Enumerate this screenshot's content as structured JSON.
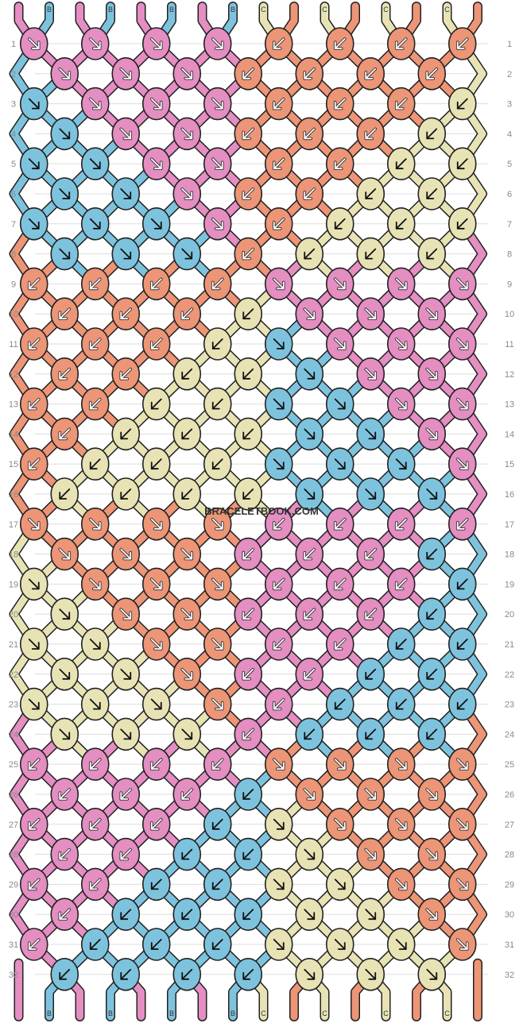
{
  "watermark": "BRACELETBOOK.COM",
  "colors": {
    "A": "#e48ec2",
    "B": "#7ec3de",
    "C": "#e8e3b5",
    "D": "#ed9577",
    "outline": "#222222",
    "grid": "#dddddd",
    "background": "#ffffff"
  },
  "strands_top": [
    "A",
    "B",
    "A",
    "B",
    "A",
    "B",
    "A",
    "B",
    "C",
    "D",
    "C",
    "D",
    "C",
    "D",
    "C",
    "D"
  ],
  "strands_bottom": [
    "A",
    "B",
    "A",
    "B",
    "A",
    "B",
    "A",
    "B",
    "C",
    "D",
    "C",
    "D",
    "C",
    "D",
    "C",
    "D"
  ],
  "strand_label_text": {
    "A": "",
    "B": "B",
    "C": "C",
    "D": ""
  },
  "row_labels": [
    "1",
    "2",
    "3",
    "4",
    "5",
    "6",
    "7",
    "8",
    "9",
    "10",
    "11",
    "12",
    "13",
    "14",
    "15",
    "16",
    "17",
    "18",
    "19",
    "20",
    "21",
    "22",
    "23",
    "24",
    "25",
    "26",
    "27",
    "28",
    "29",
    "30",
    "31",
    "32"
  ],
  "knot_rows": [
    [
      "A",
      "A",
      "A",
      "A",
      "D",
      "D",
      "D",
      "D"
    ],
    [
      "A",
      "A",
      "A",
      "D",
      "D",
      "D",
      "D"
    ],
    [
      "B",
      "A",
      "A",
      "A",
      "D",
      "D",
      "D",
      "C"
    ],
    [
      "B",
      "A",
      "A",
      "D",
      "D",
      "D",
      "C"
    ],
    [
      "B",
      "B",
      "A",
      "A",
      "D",
      "D",
      "C",
      "C"
    ],
    [
      "B",
      "B",
      "A",
      "D",
      "D",
      "C",
      "C"
    ],
    [
      "B",
      "B",
      "B",
      "A",
      "D",
      "C",
      "C",
      "C"
    ],
    [
      "B",
      "B",
      "B",
      "D",
      "C",
      "C",
      "C"
    ],
    [
      "D",
      "D",
      "D",
      "D",
      "A",
      "A",
      "A",
      "A"
    ],
    [
      "D",
      "D",
      "D",
      "C",
      "A",
      "A",
      "A"
    ],
    [
      "D",
      "D",
      "D",
      "C",
      "B",
      "A",
      "A",
      "A"
    ],
    [
      "D",
      "D",
      "C",
      "C",
      "B",
      "A",
      "A"
    ],
    [
      "D",
      "D",
      "C",
      "C",
      "B",
      "B",
      "A",
      "A"
    ],
    [
      "D",
      "C",
      "C",
      "C",
      "B",
      "B",
      "A"
    ],
    [
      "D",
      "C",
      "C",
      "C",
      "B",
      "B",
      "B",
      "A"
    ],
    [
      "C",
      "C",
      "C",
      "C",
      "B",
      "B",
      "B"
    ],
    [
      "D",
      "D",
      "D",
      "D",
      "A",
      "A",
      "A",
      "A"
    ],
    [
      "D",
      "D",
      "D",
      "A",
      "A",
      "A",
      "B"
    ],
    [
      "C",
      "D",
      "D",
      "D",
      "A",
      "A",
      "A",
      "B"
    ],
    [
      "C",
      "D",
      "D",
      "A",
      "A",
      "A",
      "B"
    ],
    [
      "C",
      "C",
      "D",
      "D",
      "A",
      "A",
      "B",
      "B"
    ],
    [
      "C",
      "C",
      "D",
      "A",
      "A",
      "B",
      "B"
    ],
    [
      "C",
      "C",
      "C",
      "D",
      "A",
      "B",
      "B",
      "B"
    ],
    [
      "C",
      "C",
      "C",
      "A",
      "B",
      "B",
      "B"
    ],
    [
      "A",
      "A",
      "A",
      "A",
      "D",
      "D",
      "D",
      "D"
    ],
    [
      "A",
      "A",
      "A",
      "B",
      "D",
      "D",
      "D"
    ],
    [
      "A",
      "A",
      "A",
      "B",
      "C",
      "D",
      "D",
      "D"
    ],
    [
      "A",
      "A",
      "B",
      "B",
      "C",
      "D",
      "D"
    ],
    [
      "A",
      "A",
      "B",
      "B",
      "C",
      "C",
      "D",
      "D"
    ],
    [
      "A",
      "B",
      "B",
      "B",
      "C",
      "C",
      "D"
    ],
    [
      "A",
      "B",
      "B",
      "B",
      "C",
      "C",
      "C",
      "D"
    ],
    [
      "B",
      "B",
      "B",
      "B",
      "C",
      "C",
      "C"
    ]
  ],
  "arrow_rows": [
    [
      "se",
      "se",
      "se",
      "se",
      "sw",
      "sw",
      "sw",
      "sw"
    ],
    [
      "se",
      "se",
      "se",
      "sw",
      "sw",
      "sw",
      "sw"
    ],
    [
      "se",
      "se",
      "se",
      "se",
      "sw",
      "sw",
      "sw",
      "sw"
    ],
    [
      "se",
      "se",
      "se",
      "sw",
      "sw",
      "sw",
      "sw"
    ],
    [
      "se",
      "se",
      "se",
      "se",
      "sw",
      "sw",
      "sw",
      "sw"
    ],
    [
      "se",
      "se",
      "se",
      "sw",
      "sw",
      "sw",
      "sw"
    ],
    [
      "se",
      "se",
      "se",
      "se",
      "sw",
      "sw",
      "sw",
      "sw"
    ],
    [
      "se",
      "se",
      "se",
      "sw",
      "sw",
      "sw",
      "sw"
    ],
    [
      "sw",
      "sw",
      "sw",
      "sw",
      "se",
      "se",
      "se",
      "se"
    ],
    [
      "sw",
      "sw",
      "sw",
      "sw",
      "se",
      "se",
      "se"
    ],
    [
      "sw",
      "sw",
      "sw",
      "sw",
      "se",
      "se",
      "se",
      "se"
    ],
    [
      "sw",
      "sw",
      "sw",
      "sw",
      "se",
      "se",
      "se"
    ],
    [
      "sw",
      "sw",
      "sw",
      "sw",
      "se",
      "se",
      "se",
      "se"
    ],
    [
      "sw",
      "sw",
      "sw",
      "sw",
      "se",
      "se",
      "se"
    ],
    [
      "sw",
      "sw",
      "sw",
      "sw",
      "se",
      "se",
      "se",
      "se"
    ],
    [
      "sw",
      "sw",
      "sw",
      "sw",
      "se",
      "se",
      "se"
    ],
    [
      "se",
      "se",
      "se",
      "se",
      "sw",
      "sw",
      "sw",
      "sw"
    ],
    [
      "se",
      "se",
      "se",
      "sw",
      "sw",
      "sw",
      "sw"
    ],
    [
      "se",
      "se",
      "se",
      "se",
      "sw",
      "sw",
      "sw",
      "sw"
    ],
    [
      "se",
      "se",
      "se",
      "sw",
      "sw",
      "sw",
      "sw"
    ],
    [
      "se",
      "se",
      "se",
      "se",
      "sw",
      "sw",
      "sw",
      "sw"
    ],
    [
      "se",
      "se",
      "se",
      "sw",
      "sw",
      "sw",
      "sw"
    ],
    [
      "se",
      "se",
      "se",
      "se",
      "sw",
      "sw",
      "sw",
      "sw"
    ],
    [
      "se",
      "se",
      "se",
      "sw",
      "sw",
      "sw",
      "sw"
    ],
    [
      "sw",
      "sw",
      "sw",
      "sw",
      "se",
      "se",
      "se",
      "se"
    ],
    [
      "sw",
      "sw",
      "sw",
      "sw",
      "se",
      "se",
      "se"
    ],
    [
      "sw",
      "sw",
      "sw",
      "sw",
      "se",
      "se",
      "se",
      "se"
    ],
    [
      "sw",
      "sw",
      "sw",
      "sw",
      "se",
      "se",
      "se"
    ],
    [
      "sw",
      "sw",
      "sw",
      "sw",
      "se",
      "se",
      "se",
      "se"
    ],
    [
      "sw",
      "sw",
      "sw",
      "sw",
      "se",
      "se",
      "se"
    ],
    [
      "sw",
      "sw",
      "sw",
      "sw",
      "se",
      "se",
      "se",
      "se"
    ],
    [
      "sw",
      "sw",
      "sw",
      "sw",
      "se",
      "se",
      "se"
    ]
  ]
}
